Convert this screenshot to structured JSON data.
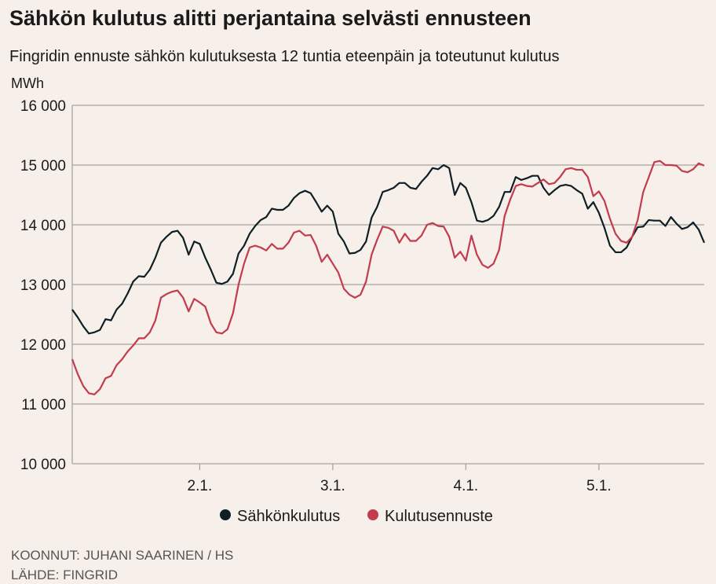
{
  "chart_data": {
    "type": "line",
    "title": "Sähkön kulutus alitti perjantaina selvästi ennusteen",
    "subtitle": "Fingridin ennuste sähkön kulutuksesta 12 tuntia eteenpäin ja toteutunut kulutus",
    "y_label": "MWh",
    "credits": [
      "KOONNUT: JUHANI SAARINEN / HS",
      "LÄHDE: FINGRID"
    ],
    "categories": [
      null,
      null,
      null,
      null,
      null,
      null,
      null,
      null,
      null,
      null,
      null,
      null,
      null,
      null,
      null,
      null,
      null,
      null,
      null,
      null,
      null,
      null,
      null,
      "2.1.",
      null,
      null,
      null,
      null,
      null,
      null,
      null,
      null,
      null,
      null,
      null,
      null,
      null,
      null,
      null,
      null,
      null,
      null,
      null,
      null,
      null,
      null,
      null,
      "3.1.",
      null,
      null,
      null,
      null,
      null,
      null,
      null,
      null,
      null,
      null,
      null,
      null,
      null,
      null,
      null,
      null,
      null,
      null,
      null,
      null,
      null,
      null,
      null,
      "4.1.",
      null,
      null,
      null,
      null,
      null,
      null,
      null,
      null,
      null,
      null,
      null,
      null,
      null,
      null,
      null,
      null,
      null,
      null,
      null,
      null,
      null,
      null,
      null,
      "5.1.",
      null,
      null,
      null,
      null,
      null,
      null,
      null,
      null,
      null,
      null,
      null,
      null,
      null,
      null,
      null,
      null,
      null,
      null,
      null
    ],
    "series": [
      {
        "name": "Sähkönkulutus",
        "color": "#0f1f26",
        "values": [
          12580,
          12450,
          12300,
          12180,
          12200,
          12240,
          12420,
          12400,
          12580,
          12680,
          12850,
          13050,
          13140,
          13130,
          13250,
          13450,
          13700,
          13800,
          13880,
          13900,
          13780,
          13500,
          13720,
          13680,
          13450,
          13250,
          13030,
          13010,
          13050,
          13180,
          13520,
          13650,
          13850,
          13980,
          14080,
          14130,
          14270,
          14250,
          14250,
          14320,
          14450,
          14530,
          14570,
          14530,
          14380,
          14220,
          14320,
          14220,
          13850,
          13720,
          13520,
          13530,
          13580,
          13720,
          14120,
          14300,
          14550,
          14580,
          14620,
          14700,
          14700,
          14620,
          14600,
          14720,
          14820,
          14950,
          14930,
          15000,
          14950,
          14500,
          14700,
          14620,
          14380,
          14070,
          14050,
          14080,
          14150,
          14300,
          14550,
          14550,
          14800,
          14750,
          14780,
          14820,
          14820,
          14620,
          14500,
          14580,
          14650,
          14670,
          14650,
          14580,
          14520,
          14270,
          14380,
          14200,
          13950,
          13650,
          13540,
          13540,
          13620,
          13800,
          13960,
          13970,
          14080,
          14070,
          14070,
          13980,
          14130,
          14020,
          13930,
          13960,
          14040,
          13920,
          13700
        ]
      },
      {
        "name": "Kulutusennuste",
        "color": "#c23b4e",
        "values": [
          11750,
          11500,
          11300,
          11180,
          11160,
          11250,
          11430,
          11470,
          11650,
          11750,
          11880,
          11980,
          12100,
          12100,
          12200,
          12400,
          12780,
          12840,
          12880,
          12900,
          12780,
          12550,
          12760,
          12700,
          12630,
          12350,
          12200,
          12180,
          12250,
          12520,
          13000,
          13350,
          13620,
          13650,
          13620,
          13570,
          13680,
          13600,
          13600,
          13700,
          13870,
          13900,
          13820,
          13830,
          13650,
          13380,
          13500,
          13350,
          13200,
          12930,
          12830,
          12780,
          12830,
          13050,
          13500,
          13750,
          13970,
          13950,
          13900,
          13700,
          13850,
          13730,
          13730,
          13820,
          14000,
          14030,
          13980,
          13970,
          13800,
          13450,
          13550,
          13400,
          13820,
          13500,
          13330,
          13280,
          13350,
          13580,
          14150,
          14420,
          14650,
          14680,
          14650,
          14640,
          14700,
          14760,
          14680,
          14700,
          14800,
          14930,
          14950,
          14920,
          14920,
          14800,
          14480,
          14560,
          14400,
          14100,
          13850,
          13730,
          13700,
          13800,
          14080,
          14550,
          14800,
          15050,
          15070,
          15000,
          15000,
          14990,
          14900,
          14880,
          14930,
          15030,
          14990
        ]
      }
    ],
    "ylim": [
      10000,
      16000
    ],
    "yticks": [
      {
        "value": 10000,
        "label": "10 000"
      },
      {
        "value": 11000,
        "label": "11 000"
      },
      {
        "value": 12000,
        "label": "12 000"
      },
      {
        "value": 13000,
        "label": "13 000"
      },
      {
        "value": 14000,
        "label": "14 000"
      },
      {
        "value": 15000,
        "label": "15 000"
      },
      {
        "value": 16000,
        "label": "16 000"
      }
    ],
    "grid": true,
    "legend": "bottom"
  }
}
